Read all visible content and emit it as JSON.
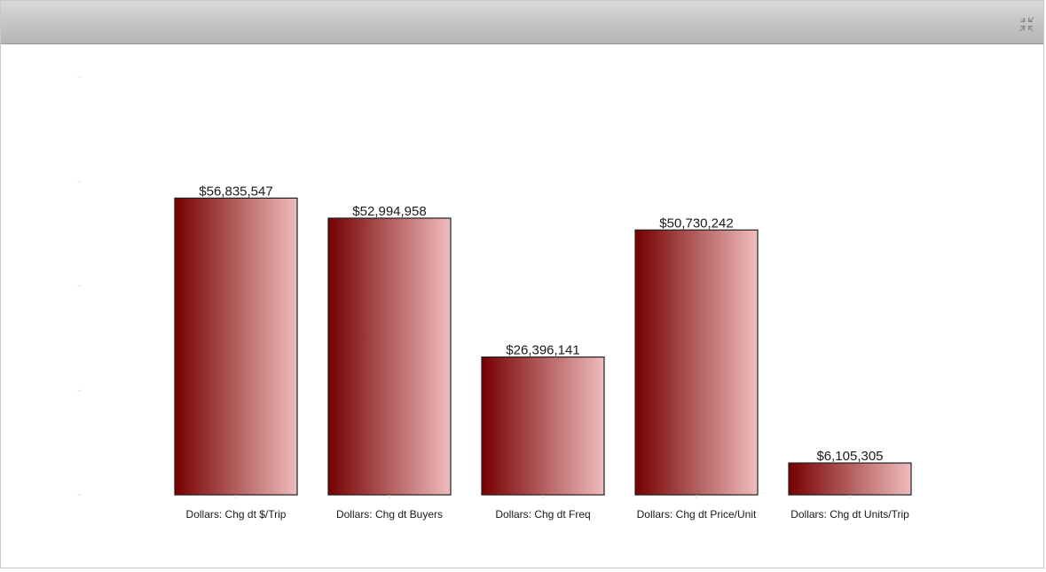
{
  "icons": {
    "collapse": "collapse-arrows-icon"
  },
  "colors": {
    "bar_dark": "#760000",
    "bar_light": "#f0bcbc",
    "bar_border": "#202020",
    "label_text": "#1a1a1a"
  },
  "chart_data": {
    "type": "bar",
    "categories": [
      "Dollars: Chg dt $/Trip",
      "Dollars: Chg dt Buyers",
      "Dollars: Chg dt Freq",
      "Dollars: Chg dt Price/Unit",
      "Dollars: Chg dt Units/Trip"
    ],
    "values": [
      56835547,
      52994958,
      26396141,
      50730242,
      6105305
    ],
    "data_labels": [
      "$56,835,547",
      "$52,994,958",
      "$26,396,141",
      "$50,730,242",
      "$6,105,305"
    ],
    "ylim": [
      0,
      80000000
    ],
    "y_ticks": [
      0,
      20000000,
      40000000,
      60000000,
      80000000
    ],
    "grid": false,
    "legend": "none"
  }
}
